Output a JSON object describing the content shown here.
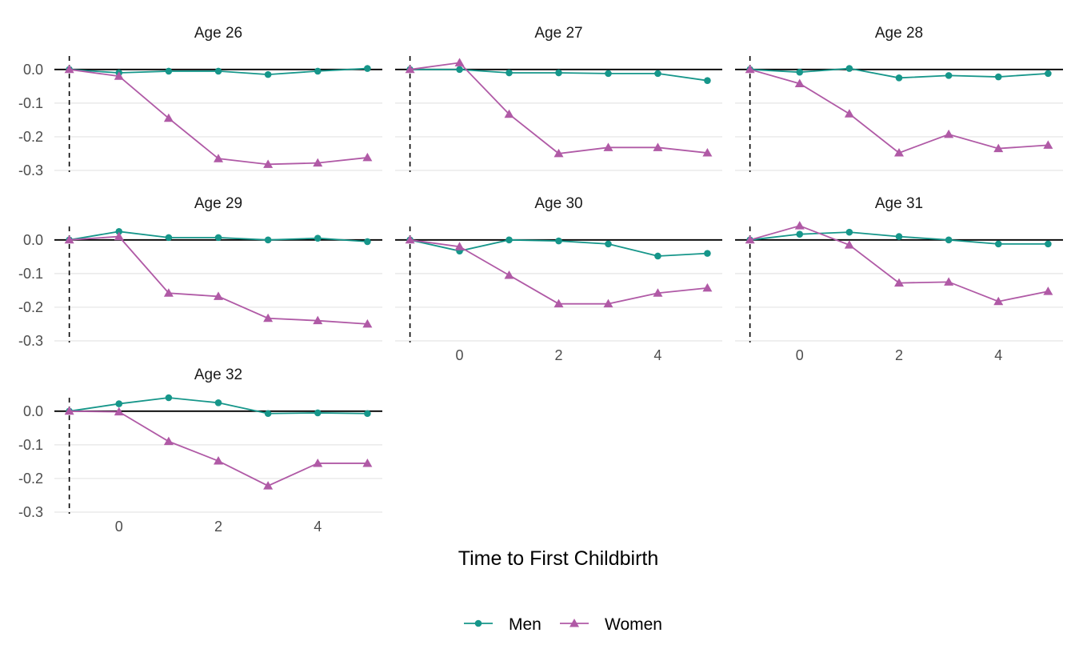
{
  "chart_data": {
    "type": "line",
    "layout": "facet-grid",
    "xlabel": "Time to First Childbirth",
    "ylabel": "",
    "xlim": [
      -1,
      5
    ],
    "ylim": [
      -0.3,
      0.0
    ],
    "x_ticks": [
      0,
      2,
      4
    ],
    "y_ticks": [
      "0.0",
      "-0.1",
      "-0.2",
      "-0.3"
    ],
    "grid": true,
    "hline": 0,
    "vline": -1,
    "legend": {
      "placement": "bottom",
      "entries": [
        "Men",
        "Women"
      ]
    },
    "colors": {
      "Men": "#16968a",
      "Women": "#b05aa6"
    },
    "markers": {
      "Men": "circle",
      "Women": "triangle"
    },
    "x": [
      -1,
      0,
      1,
      2,
      3,
      4,
      5
    ],
    "panels": [
      {
        "title": "Age 26",
        "series": [
          {
            "name": "Men",
            "values": [
              0.0,
              -0.01,
              -0.005,
              -0.005,
              -0.015,
              -0.005,
              0.003
            ]
          },
          {
            "name": "Women",
            "values": [
              0.0,
              -0.02,
              -0.145,
              -0.265,
              -0.282,
              -0.278,
              -0.262
            ]
          }
        ]
      },
      {
        "title": "Age 27",
        "series": [
          {
            "name": "Men",
            "values": [
              0.0,
              0.0,
              -0.01,
              -0.01,
              -0.012,
              -0.012,
              -0.033
            ]
          },
          {
            "name": "Women",
            "values": [
              0.0,
              0.02,
              -0.133,
              -0.25,
              -0.232,
              -0.232,
              -0.248
            ]
          }
        ]
      },
      {
        "title": "Age 28",
        "series": [
          {
            "name": "Men",
            "values": [
              0.0,
              -0.008,
              0.003,
              -0.025,
              -0.018,
              -0.022,
              -0.012
            ]
          },
          {
            "name": "Women",
            "values": [
              0.0,
              -0.042,
              -0.132,
              -0.248,
              -0.193,
              -0.235,
              -0.225
            ]
          }
        ]
      },
      {
        "title": "Age 29",
        "series": [
          {
            "name": "Men",
            "values": [
              0.0,
              0.025,
              0.007,
              0.007,
              0.0,
              0.005,
              -0.005
            ]
          },
          {
            "name": "Women",
            "values": [
              0.0,
              0.01,
              -0.158,
              -0.168,
              -0.233,
              -0.24,
              -0.25
            ]
          }
        ]
      },
      {
        "title": "Age 30",
        "series": [
          {
            "name": "Men",
            "values": [
              0.0,
              -0.033,
              0.0,
              -0.003,
              -0.012,
              -0.048,
              -0.04
            ]
          },
          {
            "name": "Women",
            "values": [
              0.0,
              -0.02,
              -0.105,
              -0.19,
              -0.19,
              -0.158,
              -0.143
            ]
          }
        ]
      },
      {
        "title": "Age 31",
        "series": [
          {
            "name": "Men",
            "values": [
              0.0,
              0.017,
              0.023,
              0.01,
              0.0,
              -0.012,
              -0.012
            ]
          },
          {
            "name": "Women",
            "values": [
              0.0,
              0.042,
              -0.015,
              -0.128,
              -0.125,
              -0.183,
              -0.153
            ]
          }
        ]
      },
      {
        "title": "Age 32",
        "series": [
          {
            "name": "Men",
            "values": [
              0.0,
              0.022,
              0.04,
              0.025,
              -0.007,
              -0.005,
              -0.007
            ]
          },
          {
            "name": "Women",
            "values": [
              0.0,
              -0.002,
              -0.09,
              -0.148,
              -0.222,
              -0.155,
              -0.155
            ]
          }
        ]
      }
    ]
  }
}
